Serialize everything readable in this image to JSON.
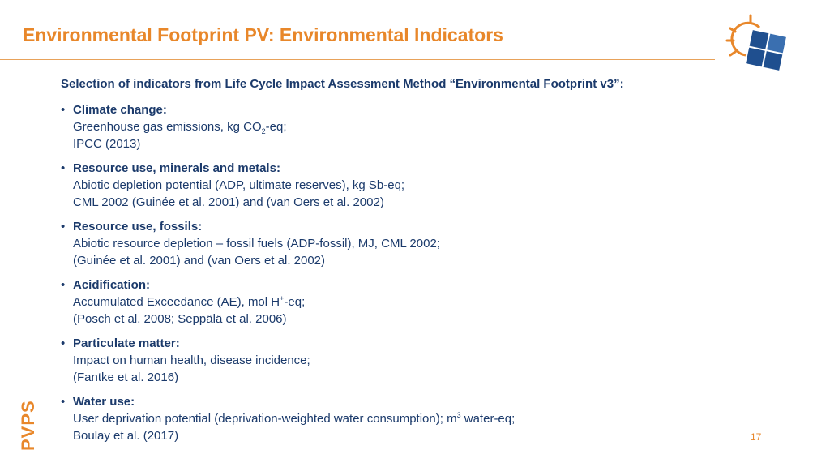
{
  "slide": {
    "title": "Environmental Footprint PV: Environmental Indicators",
    "subtitle": "Selection of indicators from Life Cycle Impact Assessment Method “Environmental Footprint v3”:",
    "side_label": "PVPS",
    "page_number": "17",
    "colors": {
      "accent": "#e8872a",
      "text": "#1b3a6b",
      "logo_blue": "#1f4f8f"
    }
  },
  "indicators": [
    {
      "bullet": "•",
      "heading": "Climate change:",
      "line1_a": "Greenhouse gas emissions, kg CO",
      "line1_sub": "2",
      "line1_b": "-eq;",
      "line2": "IPCC (2013)"
    },
    {
      "bullet": "•",
      "heading": "Resource use, minerals and metals:",
      "line1": "Abiotic depletion potential (ADP, ultimate reserves), kg Sb-eq;",
      "line2": "CML 2002 (Guinée et al. 2001) and (van Oers et al. 2002)"
    },
    {
      "bullet": "•",
      "heading": "Resource use, fossils:",
      "line1": "Abiotic resource depletion – fossil fuels (ADP-fossil), MJ, CML 2002;",
      "line2": "(Guinée et al. 2001) and (van Oers et al. 2002)"
    },
    {
      "bullet": "•",
      "heading": "Acidification:",
      "line1_a": "Accumulated Exceedance (AE), mol H",
      "line1_sup": "+",
      "line1_b": "-eq;",
      "line2": "(Posch et al. 2008; Seppälä et al. 2006)"
    },
    {
      "bullet": "•",
      "heading": "Particulate matter:",
      "line1": "Impact on human health, disease incidence;",
      "line2": "(Fantke et al. 2016)"
    },
    {
      "bullet": "•",
      "heading": "Water use:",
      "line1_a": "User deprivation potential (deprivation-weighted water consumption); m",
      "line1_sup": "3",
      "line1_b": " water-eq;",
      "line2": "Boulay et al. (2017)"
    }
  ]
}
